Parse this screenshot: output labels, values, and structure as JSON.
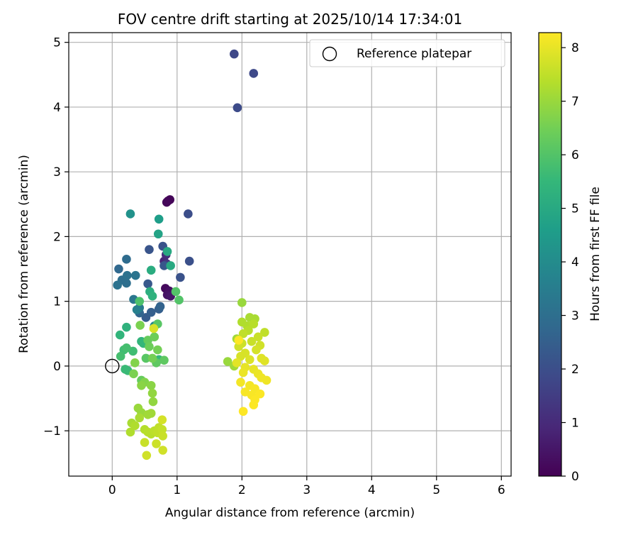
{
  "chart_data": {
    "type": "scatter",
    "title": "FOV centre drift starting at 2025/10/14 17:34:01",
    "xlabel": "Angular distance from reference (arcmin)",
    "ylabel": "Rotation from reference (arcmin)",
    "xlim": [
      -0.67,
      6.15
    ],
    "ylim": [
      -1.7,
      5.15
    ],
    "xticks": [
      0,
      1,
      2,
      3,
      4,
      5,
      6
    ],
    "yticks": [
      -1,
      0,
      1,
      2,
      3,
      4,
      5
    ],
    "xtick_labels": [
      "0",
      "1",
      "2",
      "3",
      "4",
      "5",
      "6"
    ],
    "ytick_labels": [
      "−1",
      "0",
      "1",
      "2",
      "3",
      "4",
      "5"
    ],
    "grid": true,
    "legend": {
      "position": "top-right",
      "entries": [
        "Reference platepar"
      ]
    },
    "reference_point": {
      "x": 0,
      "y": 0,
      "label": "Reference platepar"
    },
    "colorbar": {
      "label": "Hours from first FF file",
      "min": 0,
      "max": 8.28,
      "ticks": [
        0,
        1,
        2,
        3,
        4,
        5,
        6,
        7,
        8
      ],
      "tick_labels": [
        "0",
        "1",
        "2",
        "3",
        "4",
        "5",
        "6",
        "7",
        "8"
      ],
      "colormap": [
        "#440154",
        "#482878",
        "#3e4989",
        "#31688e",
        "#26828e",
        "#1f9e89",
        "#35b779",
        "#6ece58",
        "#b5de2b",
        "#fde725"
      ]
    },
    "series": [
      {
        "name": "FOV centre",
        "points": [
          {
            "x": 0.86,
            "y": 2.55,
            "h": 0.05
          },
          {
            "x": 0.89,
            "y": 2.57,
            "h": 0.1
          },
          {
            "x": 0.84,
            "y": 2.53,
            "h": 0.15
          },
          {
            "x": 0.82,
            "y": 1.2,
            "h": 0.2
          },
          {
            "x": 0.88,
            "y": 1.16,
            "h": 0.3
          },
          {
            "x": 0.85,
            "y": 1.1,
            "h": 0.4
          },
          {
            "x": 0.9,
            "y": 1.08,
            "h": 0.5
          },
          {
            "x": 0.8,
            "y": 1.62,
            "h": 0.9
          },
          {
            "x": 0.83,
            "y": 1.72,
            "h": 1.1
          },
          {
            "x": 0.84,
            "y": 1.58,
            "h": 1.3
          },
          {
            "x": 1.88,
            "y": 4.82,
            "h": 1.8
          },
          {
            "x": 2.18,
            "y": 4.52,
            "h": 1.85
          },
          {
            "x": 1.93,
            "y": 3.99,
            "h": 1.9
          },
          {
            "x": 1.17,
            "y": 2.35,
            "h": 2.0
          },
          {
            "x": 1.19,
            "y": 1.62,
            "h": 2.05
          },
          {
            "x": 1.05,
            "y": 1.37,
            "h": 2.1
          },
          {
            "x": 0.78,
            "y": 1.85,
            "h": 2.15
          },
          {
            "x": 0.57,
            "y": 1.8,
            "h": 2.2
          },
          {
            "x": 0.8,
            "y": 1.55,
            "h": 2.25
          },
          {
            "x": 0.55,
            "y": 1.27,
            "h": 2.3
          },
          {
            "x": 0.52,
            "y": 0.75,
            "h": 2.4
          },
          {
            "x": 0.6,
            "y": 0.83,
            "h": 2.5
          },
          {
            "x": 0.72,
            "y": 0.88,
            "h": 2.5
          },
          {
            "x": 0.74,
            "y": 0.92,
            "h": 2.6
          },
          {
            "x": 0.42,
            "y": 0.82,
            "h": 2.7
          },
          {
            "x": 0.1,
            "y": 1.5,
            "h": 2.8
          },
          {
            "x": 0.22,
            "y": 1.65,
            "h": 2.9
          },
          {
            "x": 0.15,
            "y": 1.33,
            "h": 3.0
          },
          {
            "x": 0.22,
            "y": 1.28,
            "h": 3.0
          },
          {
            "x": 0.08,
            "y": 1.25,
            "h": 3.1
          },
          {
            "x": 0.23,
            "y": 1.4,
            "h": 3.1
          },
          {
            "x": 0.36,
            "y": 1.4,
            "h": 3.2
          },
          {
            "x": 0.33,
            "y": 1.03,
            "h": 3.3
          },
          {
            "x": 0.42,
            "y": 0.9,
            "h": 3.4
          },
          {
            "x": 0.38,
            "y": 0.87,
            "h": 3.6
          },
          {
            "x": 0.65,
            "y": 0.62,
            "h": 3.9
          },
          {
            "x": 0.28,
            "y": 2.35,
            "h": 4.2
          },
          {
            "x": 0.72,
            "y": 2.27,
            "h": 4.6
          },
          {
            "x": 0.71,
            "y": 2.04,
            "h": 4.8
          },
          {
            "x": 0.85,
            "y": 1.77,
            "h": 5.0
          },
          {
            "x": 0.9,
            "y": 1.55,
            "h": 5.0
          },
          {
            "x": 0.6,
            "y": 1.48,
            "h": 5.1
          },
          {
            "x": 0.58,
            "y": 1.15,
            "h": 5.2
          },
          {
            "x": 0.62,
            "y": 1.08,
            "h": 5.3
          },
          {
            "x": 0.22,
            "y": 0.6,
            "h": 5.3
          },
          {
            "x": 0.12,
            "y": 0.48,
            "h": 5.4
          },
          {
            "x": 0.45,
            "y": 0.38,
            "h": 5.4
          },
          {
            "x": 0.48,
            "y": 0.35,
            "h": 5.5
          },
          {
            "x": 0.72,
            "y": 0.1,
            "h": 5.5
          },
          {
            "x": 0.2,
            "y": -0.05,
            "h": 5.6
          },
          {
            "x": 0.24,
            "y": -0.07,
            "h": 5.6
          },
          {
            "x": 0.18,
            "y": 0.25,
            "h": 5.7
          },
          {
            "x": 0.32,
            "y": 0.23,
            "h": 5.7
          },
          {
            "x": 0.13,
            "y": 0.15,
            "h": 5.8
          },
          {
            "x": 0.22,
            "y": 0.28,
            "h": 5.8
          },
          {
            "x": 0.42,
            "y": 1.0,
            "h": 5.9
          },
          {
            "x": 0.98,
            "y": 1.15,
            "h": 6.0
          },
          {
            "x": 1.03,
            "y": 1.02,
            "h": 6.0
          },
          {
            "x": 0.7,
            "y": 0.65,
            "h": 6.1
          },
          {
            "x": 0.52,
            "y": 0.12,
            "h": 6.1
          },
          {
            "x": 0.68,
            "y": 0.05,
            "h": 6.2
          },
          {
            "x": 0.8,
            "y": 0.09,
            "h": 6.2
          },
          {
            "x": 0.45,
            "y": -0.22,
            "h": 6.3
          },
          {
            "x": 0.55,
            "y": 0.4,
            "h": 6.3
          },
          {
            "x": 0.65,
            "y": 0.45,
            "h": 6.4
          },
          {
            "x": 0.57,
            "y": 0.3,
            "h": 6.4
          },
          {
            "x": 0.62,
            "y": 0.12,
            "h": 6.5
          },
          {
            "x": 0.7,
            "y": 0.25,
            "h": 6.5
          },
          {
            "x": 0.43,
            "y": 0.63,
            "h": 6.6
          },
          {
            "x": 0.33,
            "y": -0.12,
            "h": 6.6
          },
          {
            "x": 0.35,
            "y": 0.05,
            "h": 6.7
          },
          {
            "x": 0.5,
            "y": -0.25,
            "h": 6.7
          },
          {
            "x": 0.45,
            "y": -0.3,
            "h": 6.8
          },
          {
            "x": 0.6,
            "y": -0.3,
            "h": 6.8
          },
          {
            "x": 0.62,
            "y": -0.42,
            "h": 6.9
          },
          {
            "x": 0.63,
            "y": -0.55,
            "h": 6.9
          },
          {
            "x": 0.4,
            "y": -0.65,
            "h": 7.0
          },
          {
            "x": 0.45,
            "y": -0.72,
            "h": 7.0
          },
          {
            "x": 0.55,
            "y": -0.75,
            "h": 7.1
          },
          {
            "x": 0.6,
            "y": -0.73,
            "h": 7.1
          },
          {
            "x": 0.42,
            "y": -0.8,
            "h": 7.2
          },
          {
            "x": 0.3,
            "y": -0.88,
            "h": 7.2
          },
          {
            "x": 0.35,
            "y": -0.92,
            "h": 7.3
          },
          {
            "x": 0.28,
            "y": -1.02,
            "h": 7.3
          },
          {
            "x": 0.5,
            "y": -0.98,
            "h": 7.35
          },
          {
            "x": 0.55,
            "y": -1.02,
            "h": 7.4
          },
          {
            "x": 0.6,
            "y": -1.05,
            "h": 7.4
          },
          {
            "x": 0.65,
            "y": -1.0,
            "h": 7.45
          },
          {
            "x": 0.7,
            "y": -1.03,
            "h": 7.5
          },
          {
            "x": 0.72,
            "y": -0.95,
            "h": 7.5
          },
          {
            "x": 0.77,
            "y": -0.98,
            "h": 7.55
          },
          {
            "x": 0.78,
            "y": -1.08,
            "h": 7.6
          },
          {
            "x": 0.5,
            "y": -1.18,
            "h": 7.6
          },
          {
            "x": 0.68,
            "y": -1.2,
            "h": 7.65
          },
          {
            "x": 0.78,
            "y": -1.3,
            "h": 7.7
          },
          {
            "x": 0.53,
            "y": -1.38,
            "h": 7.7
          },
          {
            "x": 0.77,
            "y": -0.83,
            "h": 7.75
          },
          {
            "x": 0.64,
            "y": 0.58,
            "h": 7.8
          },
          {
            "x": 2.0,
            "y": 0.98,
            "h": 7.0
          },
          {
            "x": 1.78,
            "y": 0.07,
            "h": 7.0
          },
          {
            "x": 1.88,
            "y": 0.0,
            "h": 7.1
          },
          {
            "x": 1.92,
            "y": 0.42,
            "h": 7.1
          },
          {
            "x": 2.12,
            "y": 0.75,
            "h": 7.2
          },
          {
            "x": 2.2,
            "y": 0.73,
            "h": 7.2
          },
          {
            "x": 2.0,
            "y": 0.68,
            "h": 7.3
          },
          {
            "x": 2.08,
            "y": 0.62,
            "h": 7.3
          },
          {
            "x": 2.18,
            "y": 0.65,
            "h": 7.4
          },
          {
            "x": 2.1,
            "y": 0.55,
            "h": 7.4
          },
          {
            "x": 2.02,
            "y": 0.5,
            "h": 7.5
          },
          {
            "x": 2.35,
            "y": 0.52,
            "h": 7.5
          },
          {
            "x": 2.25,
            "y": 0.45,
            "h": 7.6
          },
          {
            "x": 2.15,
            "y": 0.38,
            "h": 7.6
          },
          {
            "x": 2.0,
            "y": 0.35,
            "h": 7.65
          },
          {
            "x": 1.95,
            "y": 0.3,
            "h": 7.7
          },
          {
            "x": 2.28,
            "y": 0.32,
            "h": 7.7
          },
          {
            "x": 2.22,
            "y": 0.25,
            "h": 7.75
          },
          {
            "x": 2.05,
            "y": 0.2,
            "h": 7.8
          },
          {
            "x": 1.98,
            "y": 0.15,
            "h": 7.8
          },
          {
            "x": 2.12,
            "y": 0.1,
            "h": 7.85
          },
          {
            "x": 2.3,
            "y": 0.12,
            "h": 7.9
          },
          {
            "x": 2.35,
            "y": 0.08,
            "h": 7.9
          },
          {
            "x": 1.92,
            "y": 0.05,
            "h": 7.95
          },
          {
            "x": 2.05,
            "y": -0.02,
            "h": 8.0
          },
          {
            "x": 2.18,
            "y": -0.05,
            "h": 8.0
          },
          {
            "x": 2.02,
            "y": -0.1,
            "h": 8.05
          },
          {
            "x": 2.25,
            "y": -0.12,
            "h": 8.05
          },
          {
            "x": 2.3,
            "y": -0.18,
            "h": 8.1
          },
          {
            "x": 2.38,
            "y": -0.22,
            "h": 8.1
          },
          {
            "x": 1.98,
            "y": -0.25,
            "h": 8.15
          },
          {
            "x": 2.12,
            "y": -0.3,
            "h": 8.15
          },
          {
            "x": 2.2,
            "y": -0.35,
            "h": 8.2
          },
          {
            "x": 2.05,
            "y": -0.4,
            "h": 8.2
          },
          {
            "x": 2.15,
            "y": -0.45,
            "h": 8.22
          },
          {
            "x": 2.28,
            "y": -0.43,
            "h": 8.25
          },
          {
            "x": 2.2,
            "y": -0.52,
            "h": 8.25
          },
          {
            "x": 2.18,
            "y": -0.6,
            "h": 8.27
          },
          {
            "x": 2.02,
            "y": -0.7,
            "h": 8.28
          },
          {
            "x": 1.95,
            "y": 0.4,
            "h": 8.28
          }
        ]
      }
    ]
  }
}
